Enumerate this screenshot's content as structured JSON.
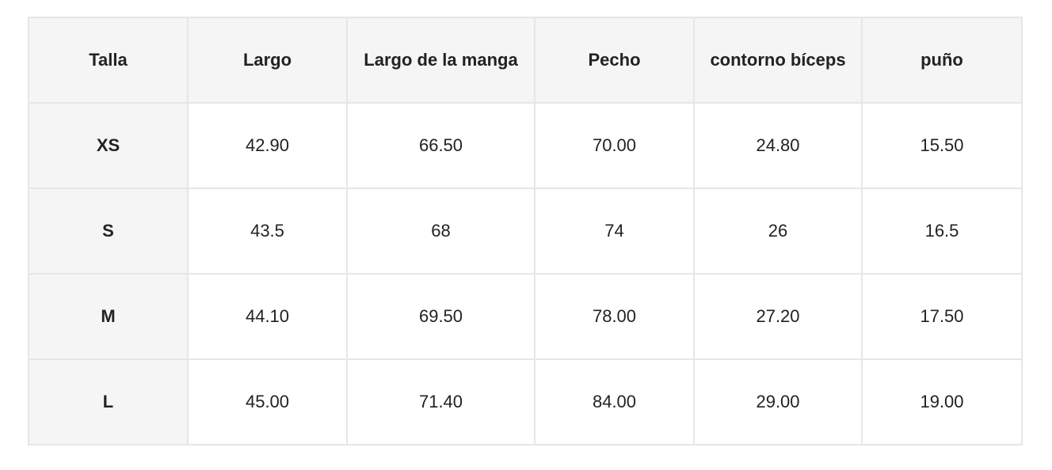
{
  "table": {
    "headers": [
      "Talla",
      "Largo",
      "Largo de la manga",
      "Pecho",
      "contorno bíceps",
      "puño"
    ],
    "rows": [
      [
        "XS",
        "42.90",
        "66.50",
        "70.00",
        "24.80",
        "15.50"
      ],
      [
        "S",
        "43.5",
        "68",
        "74",
        "26",
        "16.5"
      ],
      [
        "M",
        "44.10",
        "69.50",
        "78.00",
        "27.20",
        "17.50"
      ],
      [
        "L",
        "45.00",
        "71.40",
        "84.00",
        "29.00",
        "19.00"
      ]
    ]
  },
  "colors": {
    "header_bg": "#f5f5f5",
    "border": "#e6e6e6",
    "text": "#222222"
  }
}
